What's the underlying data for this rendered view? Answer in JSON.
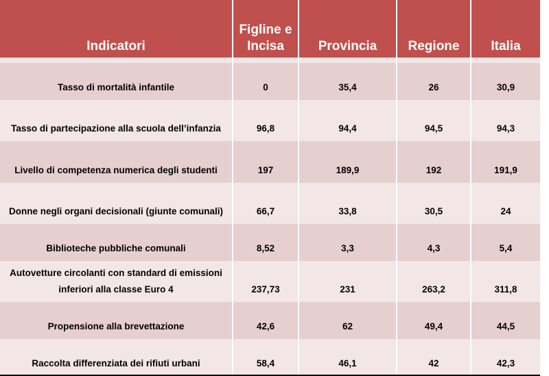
{
  "table": {
    "headers": [
      "Indicatori",
      "Figline e Incisa",
      "Provincia",
      "Regione",
      "Italia"
    ],
    "rows": [
      [
        "Tasso di mortalità infantile",
        "0",
        "35,4",
        "26",
        "30,9"
      ],
      [
        "Tasso di partecipazione alla scuola dell’infanzia",
        "96,8",
        "94,4",
        "94,5",
        "94,3"
      ],
      [
        "Livello di competenza numerica degli studenti",
        "197",
        "189,9",
        "192",
        "191,9"
      ],
      [
        "Donne negli organi decisionali (giunte comunali)",
        "66,7",
        "33,8",
        "30,5",
        "24"
      ],
      [
        "Biblioteche pubbliche comunali",
        "8,52",
        "3,3",
        "4,3",
        "5,4"
      ],
      [
        "Autovetture circolanti con standard di emissioni inferiori alla classe Euro 4",
        "237,73",
        "231",
        "263,2",
        "311,8"
      ],
      [
        "Propensione alla brevettazione",
        "42,6",
        "62",
        "49,4",
        "44,5"
      ],
      [
        "Raccolta differenziata dei rifiuti urbani",
        "58,4",
        "46,1",
        "42",
        "42,3"
      ]
    ]
  },
  "colors": {
    "header_bg": "#c0504d",
    "row_band_a": "#e6cfcf",
    "row_band_b": "#f2e6e6"
  }
}
